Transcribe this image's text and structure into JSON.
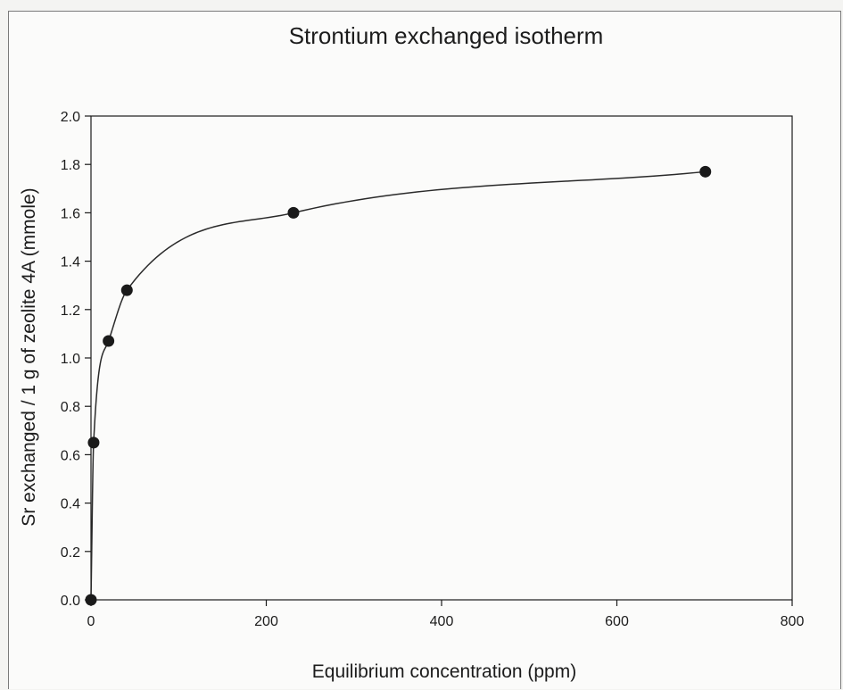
{
  "chart_data": {
    "type": "scatter",
    "title": "Strontium exchanged isotherm",
    "xlabel": "Equilibrium concentration (ppm)",
    "ylabel": "Sr exchanged / 1 g of zeolite 4A (mmole)",
    "xlim": [
      0,
      800
    ],
    "ylim": [
      0,
      2.0
    ],
    "x_ticks": [
      "0",
      "200",
      "400",
      "600",
      "800"
    ],
    "y_ticks": [
      "0.0",
      "0.2",
      "0.4",
      "0.6",
      "0.8",
      "1.0",
      "1.2",
      "1.4",
      "1.6",
      "1.8",
      "2.0"
    ],
    "grid": false,
    "legend": "none",
    "fitted_curve": true,
    "series": [
      {
        "x": [
          0,
          3,
          20,
          41,
          231,
          701
        ],
        "y": [
          0.0,
          0.65,
          1.07,
          1.28,
          1.6,
          1.77
        ]
      }
    ],
    "colors": {
      "marker": "#1a1a1a",
      "line": "#2a2a2a",
      "axis": "#1a1a1a"
    }
  }
}
